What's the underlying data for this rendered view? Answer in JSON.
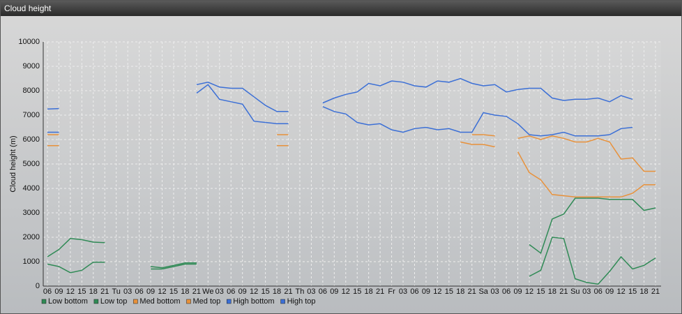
{
  "chart_data": {
    "type": "line",
    "title": "Cloud height",
    "ylabel": "Cloud height (m)",
    "categories": [
      "06",
      "09",
      "12",
      "15",
      "18",
      "21",
      "Tu",
      "03",
      "06",
      "09",
      "12",
      "15",
      "18",
      "21",
      "We",
      "03",
      "06",
      "09",
      "12",
      "15",
      "18",
      "21",
      "Th",
      "03",
      "06",
      "09",
      "12",
      "15",
      "18",
      "21",
      "Fr",
      "03",
      "06",
      "09",
      "12",
      "15",
      "18",
      "21",
      "Sa",
      "03",
      "06",
      "09",
      "12",
      "15",
      "18",
      "21",
      "Su",
      "03",
      "06",
      "09",
      "12",
      "15",
      "18",
      "21"
    ],
    "ylim": [
      0,
      10000
    ],
    "yticks": [
      0,
      1000,
      2000,
      3000,
      4000,
      5000,
      6000,
      7000,
      8000,
      9000,
      10000
    ],
    "grid": true,
    "series": [
      {
        "name": "Low bottom",
        "color": "#2f8a55",
        "values": [
          900,
          800,
          550,
          650,
          980,
          980,
          null,
          null,
          null,
          700,
          700,
          800,
          900,
          900,
          null,
          null,
          null,
          null,
          null,
          null,
          null,
          null,
          null,
          null,
          null,
          null,
          null,
          null,
          null,
          null,
          null,
          null,
          null,
          null,
          null,
          null,
          null,
          null,
          null,
          null,
          null,
          null,
          400,
          650,
          2000,
          1950,
          300,
          150,
          80,
          600,
          1200,
          700,
          850,
          1150
        ]
      },
      {
        "name": "Low top",
        "color": "#2f8a55",
        "values": [
          1200,
          1500,
          1950,
          1900,
          1800,
          1780,
          null,
          null,
          null,
          800,
          750,
          850,
          950,
          950,
          null,
          null,
          null,
          null,
          null,
          null,
          null,
          null,
          null,
          null,
          null,
          null,
          null,
          null,
          null,
          null,
          null,
          null,
          null,
          null,
          null,
          null,
          null,
          null,
          null,
          null,
          null,
          null,
          1700,
          1350,
          2750,
          2950,
          3600,
          3600,
          3600,
          3550,
          3550,
          3550,
          3100,
          3200
        ]
      },
      {
        "name": "Med bottom",
        "color": "#e8913a",
        "values": [
          5750,
          5750,
          null,
          null,
          null,
          null,
          null,
          null,
          null,
          null,
          null,
          null,
          null,
          null,
          null,
          null,
          null,
          null,
          null,
          null,
          5750,
          5750,
          null,
          null,
          null,
          null,
          null,
          null,
          null,
          null,
          null,
          null,
          null,
          null,
          null,
          null,
          5900,
          5800,
          5800,
          5700,
          null,
          5500,
          4650,
          4350,
          3750,
          3700,
          3650,
          3650,
          3650,
          3650,
          3650,
          3800,
          4150,
          4150
        ]
      },
      {
        "name": "Med top",
        "color": "#e8913a",
        "values": [
          6200,
          6200,
          null,
          null,
          null,
          null,
          null,
          null,
          null,
          null,
          null,
          null,
          null,
          null,
          null,
          null,
          null,
          null,
          null,
          null,
          6200,
          6200,
          null,
          null,
          null,
          null,
          null,
          null,
          null,
          null,
          null,
          null,
          null,
          null,
          null,
          null,
          null,
          6200,
          6200,
          6150,
          null,
          6050,
          6150,
          6000,
          6150,
          6050,
          5900,
          5900,
          6050,
          5900,
          5200,
          5250,
          4700,
          4700
        ]
      },
      {
        "name": "High bottom",
        "color": "#3b6fd6",
        "values": [
          6300,
          6300,
          null,
          null,
          null,
          null,
          null,
          null,
          null,
          null,
          null,
          null,
          null,
          7900,
          8250,
          7650,
          7550,
          7450,
          6750,
          6700,
          6650,
          6650,
          null,
          null,
          7350,
          7150,
          7050,
          6700,
          6600,
          6650,
          6400,
          6300,
          6450,
          6500,
          6400,
          6450,
          6300,
          6300,
          7100,
          7000,
          6950,
          6650,
          6200,
          6150,
          6200,
          6300,
          6150,
          6150,
          6150,
          6200,
          6450,
          6500,
          null,
          null
        ]
      },
      {
        "name": "High top",
        "color": "#3b6fd6",
        "values": [
          7250,
          7270,
          null,
          null,
          null,
          null,
          null,
          null,
          null,
          null,
          null,
          null,
          null,
          8250,
          8350,
          8150,
          8100,
          8100,
          7750,
          7400,
          7150,
          7150,
          null,
          null,
          7500,
          7700,
          7850,
          7950,
          8300,
          8200,
          8400,
          8350,
          8200,
          8150,
          8400,
          8350,
          8500,
          8300,
          8200,
          8250,
          7950,
          8050,
          8100,
          8100,
          7700,
          7600,
          7650,
          7650,
          7700,
          7550,
          7800,
          7650,
          null,
          null
        ]
      }
    ]
  }
}
